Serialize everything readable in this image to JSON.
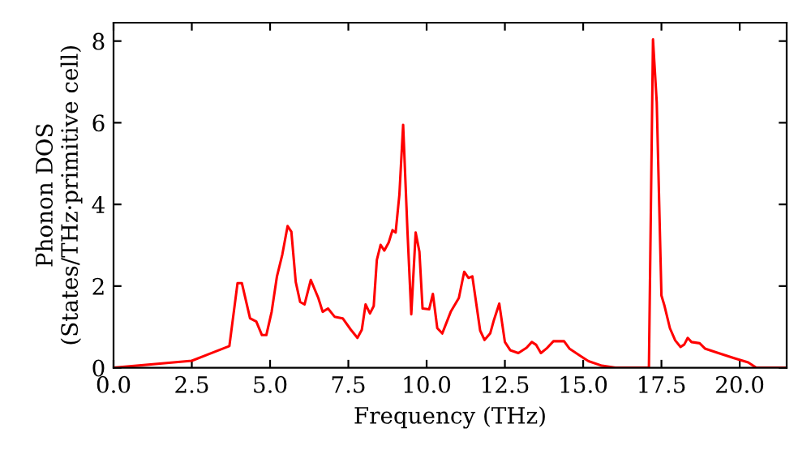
{
  "chart_data": {
    "type": "line",
    "xlabel": "Frequency (THz)",
    "ylabel": "Phonon DOS\n(States/THz·primitive cell)",
    "xlim": [
      0,
      21.5
    ],
    "ylim": [
      0,
      8.45
    ],
    "xticks": [
      {
        "value": 0,
        "label": "0.0"
      },
      {
        "value": 2.5,
        "label": "2.5"
      },
      {
        "value": 5,
        "label": "5.0"
      },
      {
        "value": 7.5,
        "label": "7.5"
      },
      {
        "value": 10,
        "label": "10.0"
      },
      {
        "value": 12.5,
        "label": "12.5"
      },
      {
        "value": 15,
        "label": "15.0"
      },
      {
        "value": 17.5,
        "label": "17.5"
      },
      {
        "value": 20,
        "label": "20.0"
      }
    ],
    "yticks": [
      0,
      2,
      4,
      6,
      8
    ],
    "grid": false,
    "line_style": "solid",
    "series": [
      {
        "color": "#ff0000",
        "x": [
          0,
          2.5,
          3.7,
          3.96,
          4.1,
          4.36,
          4.56,
          4.74,
          4.88,
          5.05,
          5.22,
          5.39,
          5.56,
          5.68,
          5.82,
          5.96,
          6.1,
          6.3,
          6.54,
          6.68,
          6.85,
          7.06,
          7.32,
          7.58,
          7.79,
          7.93,
          8.05,
          8.19,
          8.31,
          8.41,
          8.53,
          8.65,
          8.79,
          8.91,
          9.01,
          9.13,
          9.25,
          9.39,
          9.51,
          9.65,
          9.77,
          9.87,
          10.08,
          10.2,
          10.34,
          10.5,
          10.77,
          11.03,
          11.2,
          11.34,
          11.46,
          11.71,
          11.85,
          12.03,
          12.15,
          12.32,
          12.5,
          12.67,
          12.93,
          13.19,
          13.36,
          13.5,
          13.65,
          13.83,
          14.05,
          14.39,
          14.56,
          14.91,
          15.17,
          15.6,
          16.03,
          17.1,
          17.23,
          17.35,
          17.5,
          17.6,
          17.77,
          17.94,
          18.11,
          18.23,
          18.34,
          18.46,
          18.72,
          18.89,
          19.32,
          19.84,
          20.27,
          20.53,
          21.46
        ],
        "values": [
          0,
          0.17,
          0.53,
          2.07,
          2.07,
          1.21,
          1.13,
          0.8,
          0.8,
          1.37,
          2.24,
          2.77,
          3.47,
          3.33,
          2.1,
          1.61,
          1.55,
          2.15,
          1.71,
          1.37,
          1.45,
          1.25,
          1.21,
          0.93,
          0.73,
          0.93,
          1.55,
          1.33,
          1.51,
          2.64,
          3.01,
          2.87,
          3.07,
          3.37,
          3.31,
          4.24,
          5.95,
          3.31,
          1.31,
          3.31,
          2.84,
          1.45,
          1.43,
          1.81,
          0.97,
          0.84,
          1.37,
          1.71,
          2.35,
          2.2,
          2.24,
          0.91,
          0.68,
          0.84,
          1.17,
          1.57,
          0.63,
          0.43,
          0.36,
          0.49,
          0.63,
          0.56,
          0.36,
          0.47,
          0.65,
          0.65,
          0.47,
          0.29,
          0.16,
          0.05,
          0,
          0,
          8.04,
          6.5,
          1.77,
          1.51,
          0.97,
          0.67,
          0.51,
          0.57,
          0.73,
          0.63,
          0.6,
          0.47,
          0.36,
          0.23,
          0.13,
          0,
          0
        ]
      }
    ]
  }
}
